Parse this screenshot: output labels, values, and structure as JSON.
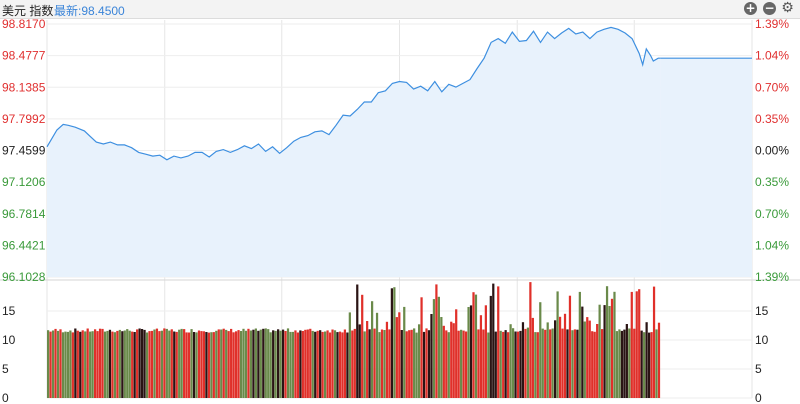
{
  "header": {
    "title": "美元 指数",
    "latest": "最新:98.4500",
    "icons": [
      "zoom-in-icon",
      "zoom-out-icon",
      "gear-icon"
    ]
  },
  "colors": {
    "up": "#e03030",
    "down": "#3a9a3a",
    "line": "#3d8fe0",
    "fill": "#e8f2fc",
    "neutral": "#222222",
    "bar_up": "#e0302a",
    "bar_down": "#6a8a4a",
    "bar_dark": "#2a1414"
  },
  "chart_data": [
    {
      "type": "line",
      "title": "",
      "y_left_ticks": [
        "98.8170",
        "98.4777",
        "98.1385",
        "97.7992",
        "97.4599",
        "97.1206",
        "96.7814",
        "96.4421",
        "96.1028"
      ],
      "y_right_ticks": [
        "1.39%",
        "1.04%",
        "0.70%",
        "0.35%",
        "0.00%",
        "0.35%",
        "0.70%",
        "1.04%",
        "1.39%"
      ],
      "ylim": [
        96.1028,
        98.817
      ],
      "prev_close": 97.4599,
      "latest": 98.45,
      "x_extent": [
        0,
        100
      ],
      "x": [
        0,
        1.4,
        2.3,
        3,
        4,
        5.3,
        6,
        7,
        8,
        9,
        10,
        11,
        12,
        13,
        14,
        15,
        16,
        17,
        18,
        19,
        20,
        21,
        22,
        23,
        24,
        25,
        26,
        27,
        28,
        29,
        30,
        31,
        32,
        33,
        34,
        35,
        36,
        37,
        38,
        39,
        40,
        41,
        42,
        43,
        44,
        45,
        46,
        47,
        48,
        49,
        50,
        51,
        52,
        53,
        54,
        55,
        56,
        57,
        58,
        59,
        60,
        61,
        62,
        63,
        64,
        65,
        66,
        67,
        68,
        69,
        70,
        71,
        72,
        73,
        74,
        75,
        76,
        77,
        78,
        79,
        80,
        81,
        82,
        83,
        84,
        84.5,
        85,
        85.6,
        86,
        86.7,
        87
      ],
      "y": [
        97.5,
        97.68,
        97.74,
        97.73,
        97.71,
        97.67,
        97.62,
        97.55,
        97.53,
        97.55,
        97.52,
        97.52,
        97.49,
        97.44,
        97.42,
        97.4,
        97.41,
        97.36,
        97.4,
        97.38,
        97.4,
        97.44,
        97.44,
        97.39,
        97.45,
        97.47,
        97.44,
        97.47,
        97.51,
        97.48,
        97.53,
        97.45,
        97.5,
        97.43,
        97.49,
        97.56,
        97.6,
        97.62,
        97.66,
        97.67,
        97.63,
        97.73,
        97.84,
        97.83,
        97.9,
        97.98,
        97.98,
        98.08,
        98.1,
        98.18,
        98.2,
        98.19,
        98.12,
        98.15,
        98.1,
        98.2,
        98.09,
        98.17,
        98.14,
        98.18,
        98.22,
        98.34,
        98.45,
        98.62,
        98.66,
        98.61,
        98.73,
        98.63,
        98.64,
        98.74,
        98.62,
        98.73,
        98.66,
        98.72,
        98.77,
        98.71,
        98.73,
        98.66,
        98.73,
        98.76,
        98.78,
        98.76,
        98.72,
        98.66,
        98.5,
        98.38,
        98.55,
        98.48,
        98.42,
        98.45,
        98.45
      ]
    },
    {
      "type": "bar",
      "title": "",
      "y_ticks": [
        "15",
        "10",
        "5",
        "0"
      ],
      "ylim": [
        0,
        20
      ],
      "n_bars": 248,
      "base_cap": 12,
      "spike_from": 0.49,
      "spike_max": 20
    }
  ]
}
